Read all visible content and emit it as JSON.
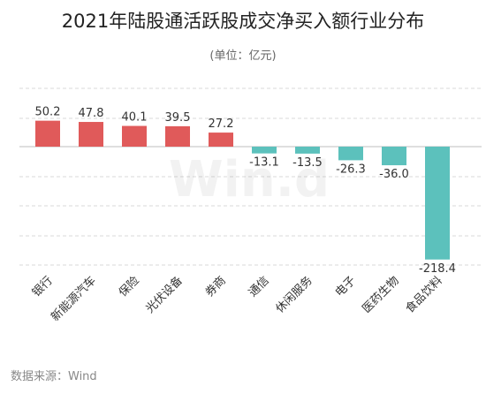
{
  "chart_data": {
    "type": "bar",
    "title": "2021年陆股通活跃股成交净买入额行业分布",
    "subtitle": "(单位：亿元)",
    "source": "数据来源：Wind",
    "watermark": "Win.d",
    "categories": [
      "银行",
      "新能源汽车",
      "保险",
      "光伏设备",
      "券商",
      "通信",
      "休闲服务",
      "电子",
      "医药生物",
      "食品饮料"
    ],
    "series": [
      {
        "values": [
          50.2,
          47.8,
          40.1,
          39.5,
          27.2,
          -13.1,
          -13.5,
          -26.3,
          -36.0,
          -218.4
        ]
      }
    ],
    "value_labels": [
      "50.2",
      "47.8",
      "40.1",
      "39.5",
      "27.2",
      "-13.1",
      "-13.5",
      "-26.3",
      "-36.0",
      "-218.4"
    ],
    "grid": true,
    "colors": {
      "positive": "#e05a5a",
      "negative": "#5cc1bc",
      "grid": "#d9d9d9",
      "label": "#333333"
    }
  }
}
